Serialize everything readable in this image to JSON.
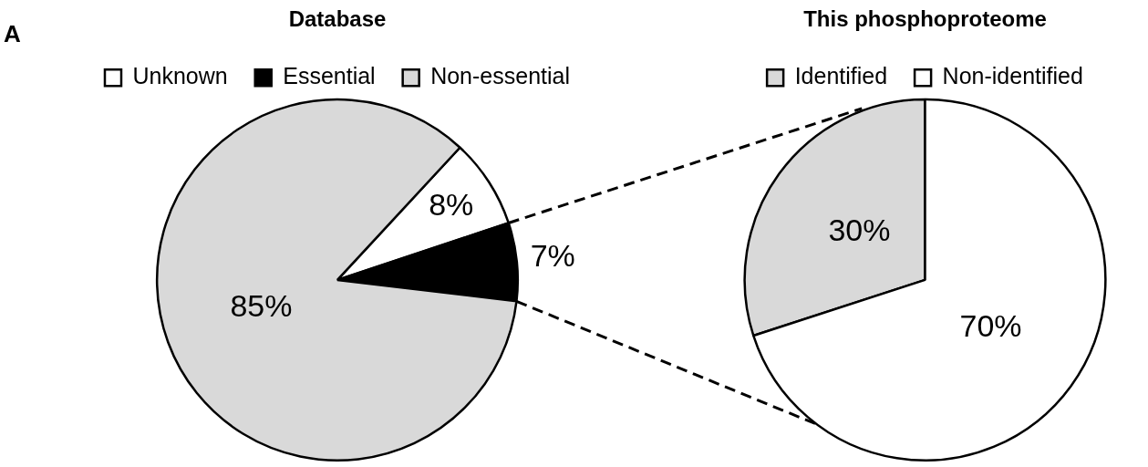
{
  "chart_data": [
    {
      "type": "pie",
      "title": "Database",
      "annotations": [
        "A"
      ],
      "categories": [
        "Unknown",
        "Essential",
        "Non-essential"
      ],
      "values": [
        8,
        7,
        85
      ],
      "value_labels": [
        "8%",
        "7%",
        "85%"
      ],
      "colors": [
        "#ffffff",
        "#000000",
        "#d9d9d9"
      ],
      "legend": "top"
    },
    {
      "type": "pie",
      "title": "This phosphoproteome",
      "categories": [
        "Identified",
        "Non-identified"
      ],
      "values": [
        30,
        70
      ],
      "value_labels": [
        "30%",
        "70%"
      ],
      "colors": [
        "#d9d9d9",
        "#ffffff"
      ],
      "legend": "top"
    }
  ]
}
